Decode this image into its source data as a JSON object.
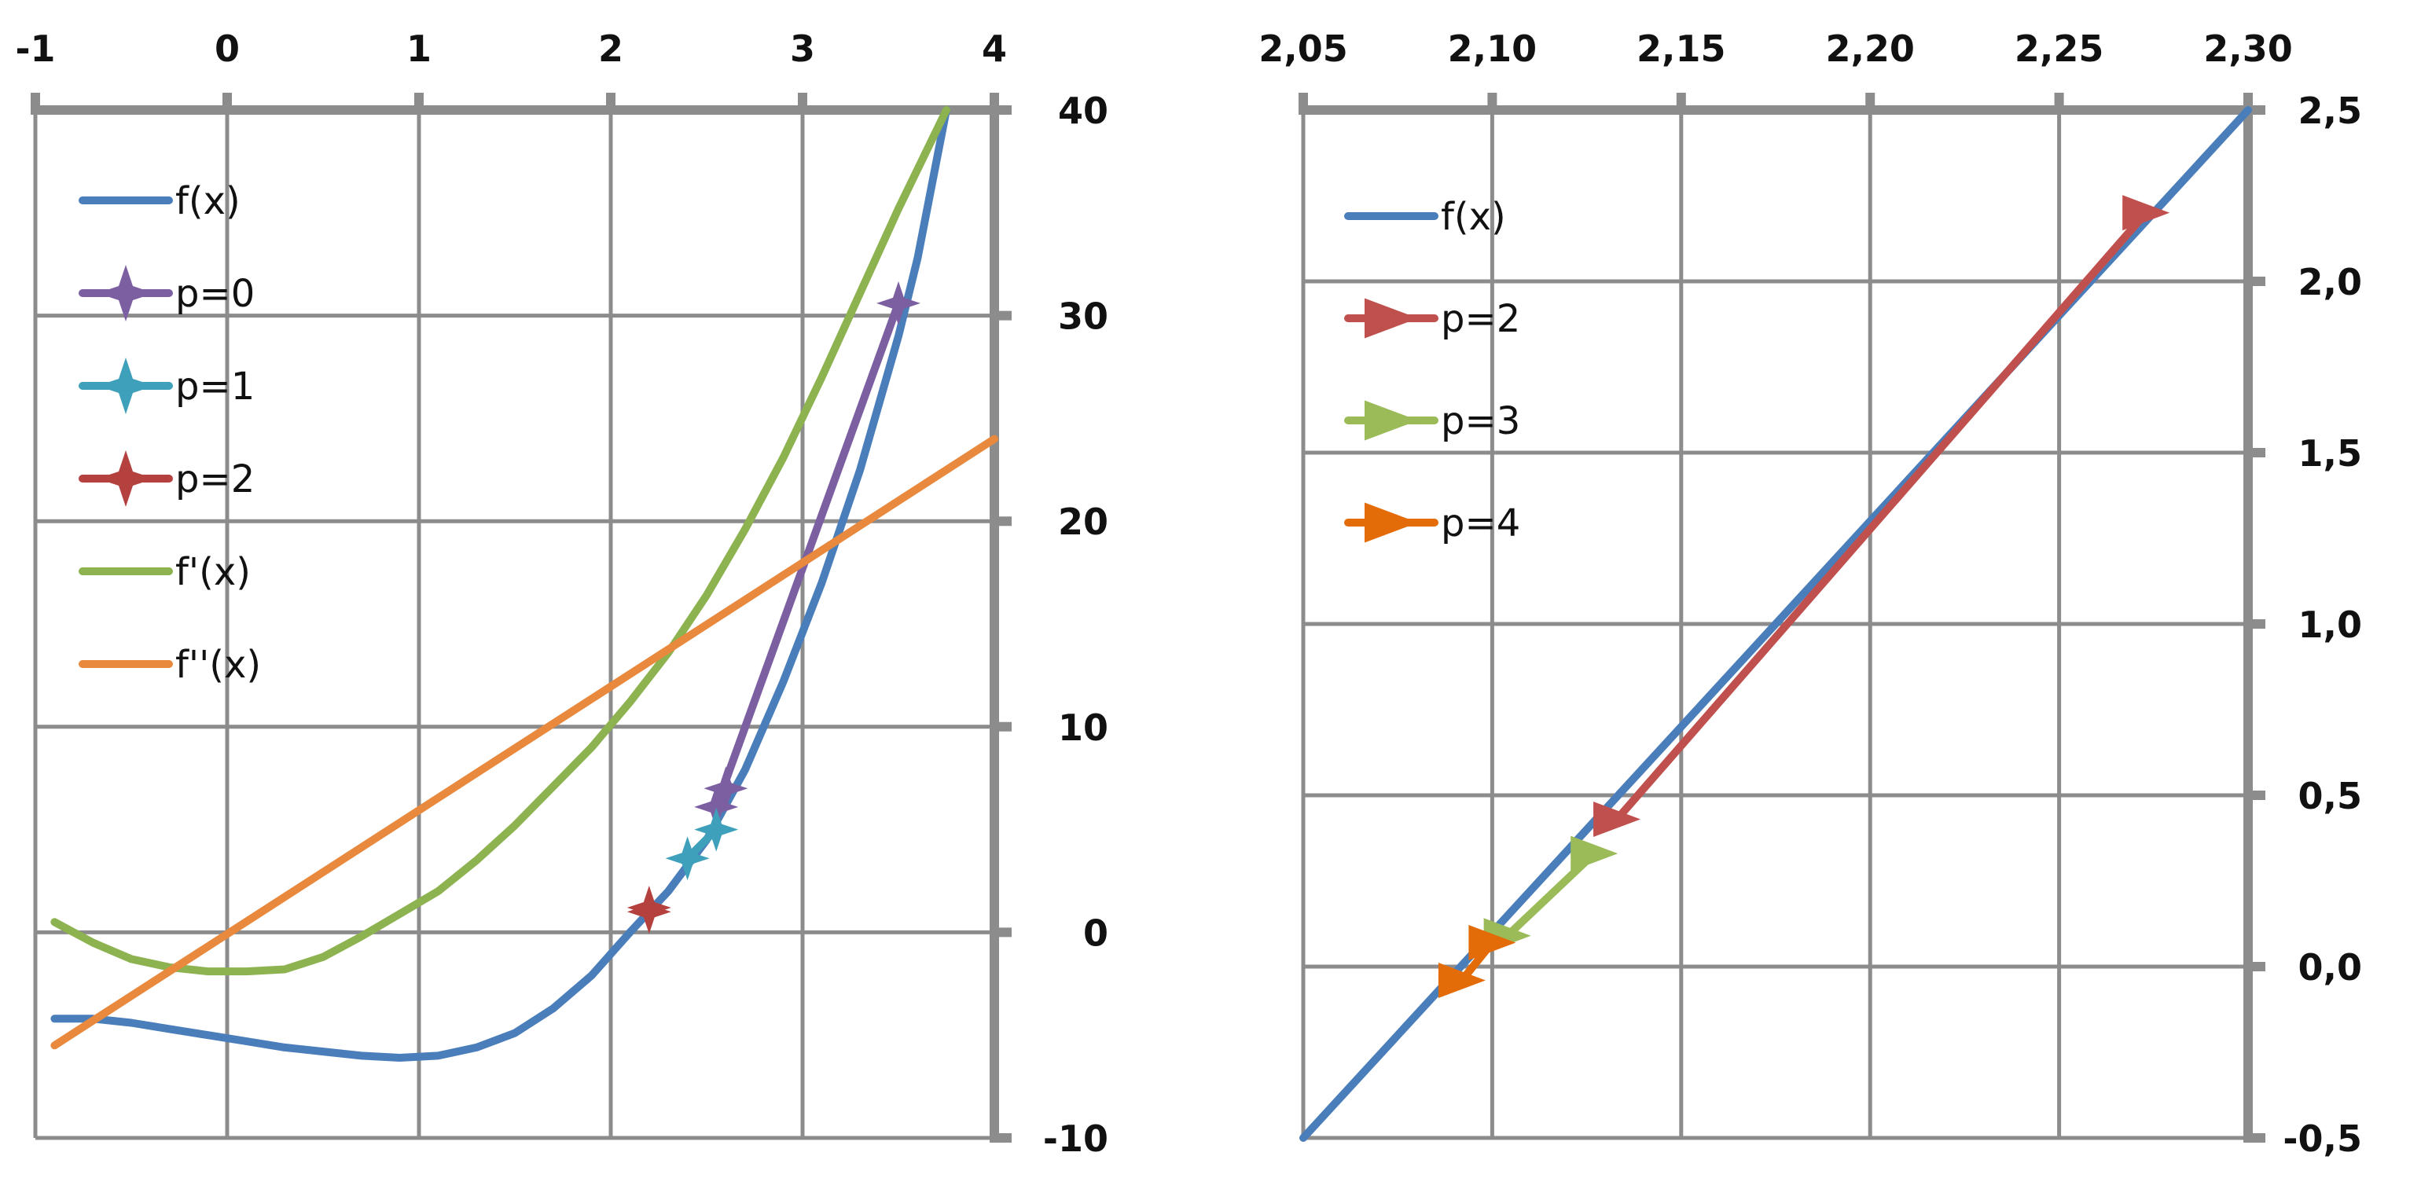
{
  "chart_data": [
    {
      "type": "line",
      "title": "",
      "xlabel": "",
      "ylabel": "",
      "xlim": [
        -1,
        4
      ],
      "ylim": [
        -10,
        40
      ],
      "x_axis_position": "top",
      "y_axis_position": "right",
      "grid": true,
      "legend_position": "top-left",
      "x_ticks": [
        -1,
        0,
        1,
        2,
        3,
        4
      ],
      "x_tick_labels": [
        "-1",
        "0",
        "1",
        "2",
        "3",
        "4"
      ],
      "y_ticks": [
        -10,
        0,
        10,
        20,
        30,
        40
      ],
      "y_tick_labels": [
        "-10",
        "0",
        "10",
        "20",
        "30",
        "40"
      ],
      "series": [
        {
          "name": "f(x)",
          "color": "#4a7ebb",
          "marker": "none",
          "points": [
            [
              -0.9,
              -4.2
            ],
            [
              -0.7,
              -4.2
            ],
            [
              -0.5,
              -4.4
            ],
            [
              -0.3,
              -4.7
            ],
            [
              -0.1,
              -5.0
            ],
            [
              0.1,
              -5.3
            ],
            [
              0.3,
              -5.6
            ],
            [
              0.5,
              -5.8
            ],
            [
              0.7,
              -6.0
            ],
            [
              0.9,
              -6.1
            ],
            [
              1.1,
              -6.0
            ],
            [
              1.3,
              -5.6
            ],
            [
              1.5,
              -4.9
            ],
            [
              1.7,
              -3.7
            ],
            [
              1.9,
              -2.1
            ],
            [
              2.1,
              0.0
            ],
            [
              2.3,
              2.0
            ],
            [
              2.5,
              4.5
            ],
            [
              2.7,
              7.9
            ],
            [
              2.9,
              12.2
            ],
            [
              3.1,
              17.0
            ],
            [
              3.3,
              22.5
            ],
            [
              3.5,
              29.0
            ],
            [
              3.6,
              32.8
            ],
            [
              3.75,
              40.0
            ]
          ]
        },
        {
          "name": "p=0",
          "color": "#7c5fa1",
          "marker": "star",
          "points": [
            [
              3.5,
              30.6
            ],
            [
              2.55,
              6.1
            ],
            [
              2.6,
              7.0
            ]
          ]
        },
        {
          "name": "p=1",
          "color": "#3ea0ba",
          "marker": "star",
          "points": [
            [
              2.55,
              5.0
            ],
            [
              2.4,
              3.6
            ]
          ]
        },
        {
          "name": "p=2",
          "color": "#b5413f",
          "marker": "star",
          "points": [
            [
              2.2,
              1.2
            ],
            [
              2.2,
              1.0
            ]
          ]
        },
        {
          "name": "f'(x)",
          "color": "#8db250",
          "marker": "none",
          "points": [
            [
              -0.9,
              0.5
            ],
            [
              -0.7,
              -0.5
            ],
            [
              -0.5,
              -1.3
            ],
            [
              -0.3,
              -1.7
            ],
            [
              -0.1,
              -1.9
            ],
            [
              0.1,
              -1.9
            ],
            [
              0.3,
              -1.8
            ],
            [
              0.5,
              -1.2
            ],
            [
              0.7,
              -0.2
            ],
            [
              0.9,
              0.9
            ],
            [
              1.1,
              2.0
            ],
            [
              1.3,
              3.5
            ],
            [
              1.5,
              5.2
            ],
            [
              1.7,
              7.1
            ],
            [
              1.9,
              9.0
            ],
            [
              2.1,
              11.2
            ],
            [
              2.3,
              13.6
            ],
            [
              2.5,
              16.4
            ],
            [
              2.7,
              19.6
            ],
            [
              2.9,
              23.1
            ],
            [
              3.1,
              27.0
            ],
            [
              3.3,
              31.1
            ],
            [
              3.5,
              35.2
            ],
            [
              3.75,
              40.0
            ]
          ]
        },
        {
          "name": "f''(x)",
          "color": "#e8893e",
          "marker": "none",
          "points": [
            [
              -0.9,
              -5.5
            ],
            [
              4.0,
              24.0
            ]
          ]
        }
      ]
    },
    {
      "type": "line",
      "title": "",
      "xlabel": "",
      "ylabel": "",
      "xlim": [
        2.05,
        2.3
      ],
      "ylim": [
        -0.5,
        2.5
      ],
      "x_axis_position": "top",
      "y_axis_position": "right",
      "grid": true,
      "legend_position": "top-left",
      "x_ticks": [
        2.05,
        2.1,
        2.15,
        2.2,
        2.25,
        2.3
      ],
      "x_tick_labels": [
        "2,05",
        "2,10",
        "2,15",
        "2,20",
        "2,25",
        "2,30"
      ],
      "y_ticks": [
        -0.5,
        0.0,
        0.5,
        1.0,
        1.5,
        2.0,
        2.5
      ],
      "y_tick_labels": [
        "-0,5",
        "0,0",
        "0,5",
        "1,0",
        "1,5",
        "2,0",
        "2,5"
      ],
      "series": [
        {
          "name": "f(x)",
          "color": "#4a7ebb",
          "marker": "none",
          "points": [
            [
              2.05,
              -0.5
            ],
            [
              2.3,
              2.5
            ]
          ]
        },
        {
          "name": "p=2",
          "color": "#c0504d",
          "marker": "triangle",
          "points": [
            [
              2.273,
              2.2
            ],
            [
              2.133,
              0.43
            ]
          ]
        },
        {
          "name": "p=3",
          "color": "#9bbb59",
          "marker": "triangle",
          "points": [
            [
              2.127,
              0.33
            ],
            [
              2.104,
              0.09
            ]
          ]
        },
        {
          "name": "p=4",
          "color": "#e36c09",
          "marker": "triangle",
          "points": [
            [
              2.1,
              0.07
            ],
            [
              2.092,
              -0.04
            ]
          ]
        }
      ]
    }
  ]
}
